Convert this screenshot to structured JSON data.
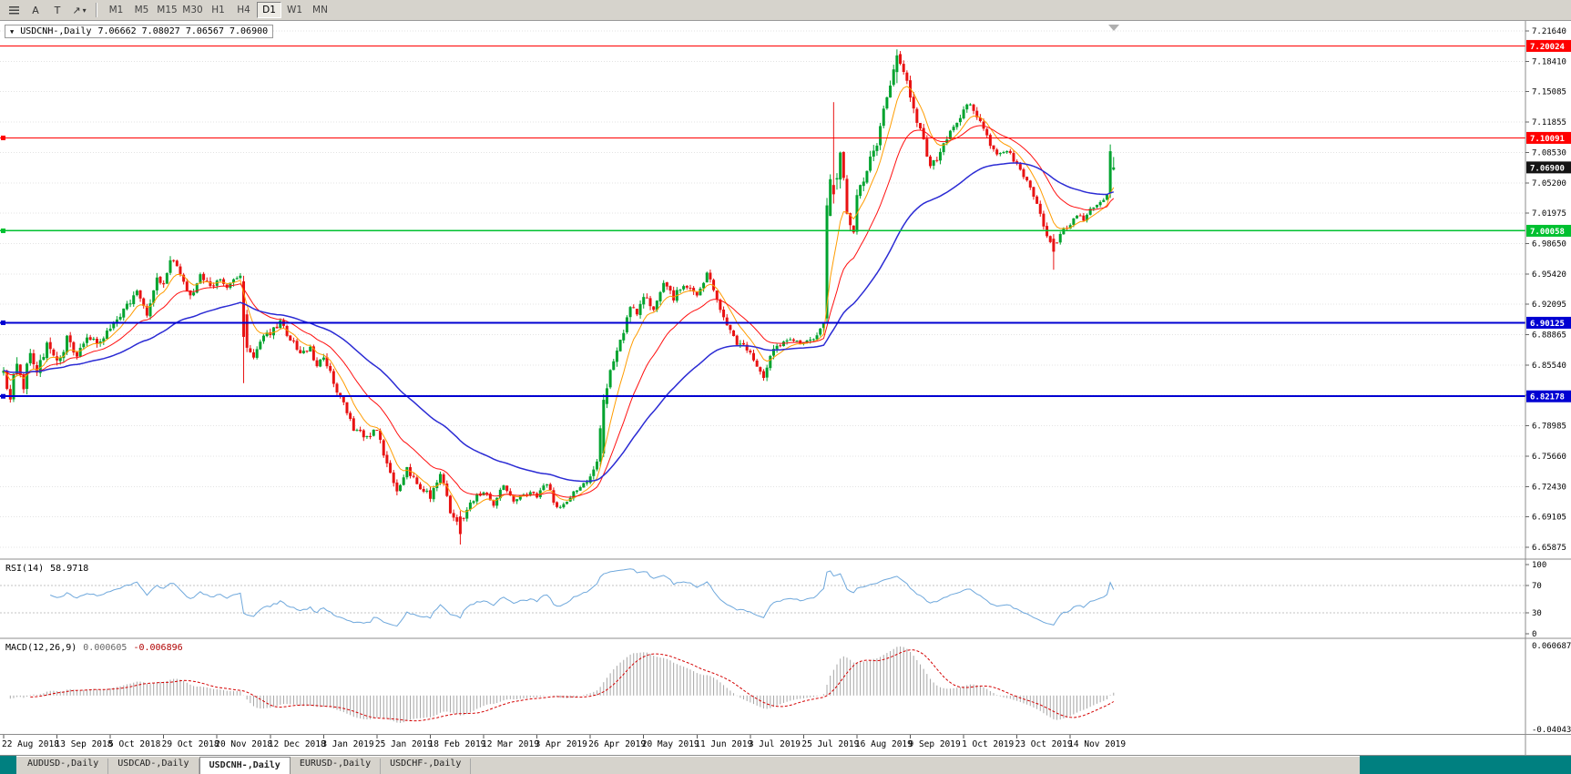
{
  "toolbar": {
    "icons": [
      {
        "name": "scroll-menu-icon",
        "glyph": "lines",
        "caret": false
      },
      {
        "name": "cursor-mode-icon",
        "glyph": "A",
        "caret": false
      },
      {
        "name": "text-tool-icon",
        "glyph": "T",
        "caret": false
      },
      {
        "name": "line-studies-icon",
        "glyph": "↗",
        "caret": true
      }
    ],
    "timeframes": [
      "M1",
      "M5",
      "M15",
      "M30",
      "H1",
      "H4",
      "D1",
      "W1",
      "MN"
    ],
    "active_timeframe": "D1"
  },
  "chart": {
    "title": "USDCNH-,Daily",
    "ohlc": "7.06662 7.08027 7.06567 7.06900",
    "price_axis_labels": [
      "7.21640",
      "7.18410",
      "7.15085",
      "7.11855",
      "7.08530",
      "7.05200",
      "7.01975",
      "6.98650",
      "6.95420",
      "6.92095",
      "6.88865",
      "6.85540",
      "6.82210",
      "6.78985",
      "6.75660",
      "6.72430",
      "6.69105",
      "6.65875"
    ],
    "axis_top_value": 7.2164,
    "axis_bottom_value": 6.65875,
    "up_color": "#00A32E",
    "down_color": "#E81212",
    "grid_color": "#E3E3E3",
    "hlines": [
      {
        "price": 7.20024,
        "label": "7.20024",
        "color": "#FF0000",
        "width": 1,
        "anchor": false
      },
      {
        "price": 7.10091,
        "label": "7.10091",
        "color": "#FF0000",
        "width": 1.3,
        "anchor": true
      },
      {
        "price": 7.00058,
        "label": "7.00058",
        "color": "#00C030",
        "width": 1.6,
        "anchor": true
      },
      {
        "price": 6.90125,
        "label": "6.90125",
        "color": "#0000D2",
        "width": 2,
        "anchor": true
      },
      {
        "price": 6.82178,
        "label": "6.82178",
        "color": "#0000D2",
        "width": 2,
        "anchor": true
      }
    ],
    "current_price": {
      "value": 7.069,
      "label": "7.06900",
      "bg": "#141414"
    }
  },
  "chart_data": {
    "type": "candlestick",
    "symbol": "USDCNH",
    "timeframe": "Daily",
    "bars": 334,
    "bars_per_label": 16,
    "x_axis_dates": [
      "22 Aug 2018",
      "13 Sep 2018",
      "5 Oct 2018",
      "29 Oct 2018",
      "20 Nov 2018",
      "12 Dec 2018",
      "3 Jan 2019",
      "25 Jan 2019",
      "18 Feb 2019",
      "12 Mar 2019",
      "3 Apr 2019",
      "26 Apr 2019",
      "20 May 2019",
      "11 Jun 2019",
      "3 Jul 2019",
      "25 Jul 2019",
      "16 Aug 2019",
      "9 Sep 2019",
      "1 Oct 2019",
      "23 Oct 2019",
      "14 Nov 2019"
    ],
    "close_waypoints": [
      [
        0,
        6.848,
        0.016
      ],
      [
        2,
        6.822,
        0.015
      ],
      [
        4,
        6.858,
        0.014
      ],
      [
        6,
        6.832,
        0.014
      ],
      [
        8,
        6.872,
        0.013
      ],
      [
        10,
        6.845,
        0.012
      ],
      [
        13,
        6.878,
        0.012
      ],
      [
        16,
        6.856,
        0.011
      ],
      [
        19,
        6.884,
        0.011
      ],
      [
        22,
        6.862,
        0.01
      ],
      [
        25,
        6.888,
        0.01
      ],
      [
        28,
        6.876,
        0.009
      ],
      [
        32,
        6.894,
        0.009
      ],
      [
        36,
        6.916,
        0.009
      ],
      [
        40,
        6.932,
        0.009
      ],
      [
        43,
        6.908,
        0.009
      ],
      [
        46,
        6.952,
        0.009
      ],
      [
        48,
        6.942,
        0.008
      ],
      [
        50,
        6.972,
        0.009
      ],
      [
        53,
        6.954,
        0.008
      ],
      [
        56,
        6.93,
        0.008
      ],
      [
        59,
        6.952,
        0.008
      ],
      [
        62,
        6.938,
        0.008
      ],
      [
        64,
        6.948,
        0.008
      ],
      [
        67,
        6.942,
        0.008
      ],
      [
        71,
        6.95,
        0.008
      ],
      [
        73,
        6.876,
        0.009
      ],
      [
        75,
        6.862,
        0.009
      ],
      [
        77,
        6.882,
        0.008
      ],
      [
        80,
        6.89,
        0.008
      ],
      [
        83,
        6.902,
        0.008
      ],
      [
        86,
        6.884,
        0.008
      ],
      [
        89,
        6.868,
        0.008
      ],
      [
        92,
        6.874,
        0.007
      ],
      [
        94,
        6.852,
        0.008
      ],
      [
        96,
        6.864,
        0.008
      ],
      [
        99,
        6.838,
        0.008
      ],
      [
        102,
        6.812,
        0.008
      ],
      [
        105,
        6.788,
        0.008
      ],
      [
        108,
        6.778,
        0.008
      ],
      [
        112,
        6.786,
        0.007
      ],
      [
        114,
        6.758,
        0.008
      ],
      [
        116,
        6.736,
        0.008
      ],
      [
        118,
        6.72,
        0.008
      ],
      [
        121,
        6.744,
        0.007
      ],
      [
        124,
        6.728,
        0.007
      ],
      [
        128,
        6.714,
        0.007
      ],
      [
        131,
        6.738,
        0.007
      ],
      [
        134,
        6.698,
        0.007
      ],
      [
        136,
        6.684,
        0.007
      ],
      [
        138,
        6.692,
        0.007
      ],
      [
        140,
        6.708,
        0.006
      ],
      [
        144,
        6.72,
        0.006
      ],
      [
        147,
        6.704,
        0.006
      ],
      [
        150,
        6.728,
        0.006
      ],
      [
        153,
        6.708,
        0.006
      ],
      [
        156,
        6.718,
        0.006
      ],
      [
        160,
        6.714,
        0.005
      ],
      [
        163,
        6.728,
        0.005
      ],
      [
        166,
        6.7,
        0.006
      ],
      [
        169,
        6.71,
        0.005
      ],
      [
        172,
        6.722,
        0.005
      ],
      [
        176,
        6.734,
        0.006
      ],
      [
        178,
        6.748,
        0.01
      ],
      [
        180,
        6.818,
        0.013
      ],
      [
        182,
        6.848,
        0.012
      ],
      [
        184,
        6.868,
        0.011
      ],
      [
        186,
        6.888,
        0.011
      ],
      [
        188,
        6.918,
        0.01
      ],
      [
        190,
        6.908,
        0.009
      ],
      [
        192,
        6.932,
        0.009
      ],
      [
        195,
        6.918,
        0.008
      ],
      [
        198,
        6.942,
        0.008
      ],
      [
        201,
        6.928,
        0.008
      ],
      [
        204,
        6.944,
        0.008
      ],
      [
        208,
        6.93,
        0.008
      ],
      [
        211,
        6.954,
        0.008
      ],
      [
        214,
        6.928,
        0.008
      ],
      [
        217,
        6.898,
        0.008
      ],
      [
        220,
        6.878,
        0.008
      ],
      [
        224,
        6.872,
        0.007
      ],
      [
        226,
        6.854,
        0.008
      ],
      [
        228,
        6.838,
        0.009
      ],
      [
        230,
        6.868,
        0.008
      ],
      [
        233,
        6.878,
        0.007
      ],
      [
        236,
        6.884,
        0.006
      ],
      [
        240,
        6.879,
        0.006
      ],
      [
        243,
        6.884,
        0.006
      ],
      [
        246,
        6.899,
        0.008
      ],
      [
        247,
        7.022,
        0.022
      ],
      [
        248,
        7.048,
        0.022
      ],
      [
        250,
        7.058,
        0.02
      ],
      [
        251,
        7.082,
        0.018
      ],
      [
        253,
        7.02,
        0.016
      ],
      [
        255,
        6.998,
        0.015
      ],
      [
        256,
        7.042,
        0.013
      ],
      [
        258,
        7.056,
        0.012
      ],
      [
        260,
        7.078,
        0.012
      ],
      [
        262,
        7.092,
        0.012
      ],
      [
        264,
        7.128,
        0.011
      ],
      [
        266,
        7.162,
        0.011
      ],
      [
        268,
        7.188,
        0.01
      ],
      [
        270,
        7.176,
        0.01
      ],
      [
        272,
        7.148,
        0.01
      ],
      [
        274,
        7.118,
        0.01
      ],
      [
        276,
        7.098,
        0.009
      ],
      [
        278,
        7.068,
        0.009
      ],
      [
        280,
        7.078,
        0.008
      ],
      [
        282,
        7.092,
        0.008
      ],
      [
        284,
        7.106,
        0.008
      ],
      [
        286,
        7.119,
        0.008
      ],
      [
        288,
        7.128,
        0.008
      ],
      [
        290,
        7.14,
        0.008
      ],
      [
        292,
        7.124,
        0.008
      ],
      [
        294,
        7.108,
        0.007
      ],
      [
        296,
        7.094,
        0.007
      ],
      [
        298,
        7.082,
        0.007
      ],
      [
        301,
        7.089,
        0.006
      ],
      [
        304,
        7.071,
        0.006
      ],
      [
        307,
        7.054,
        0.006
      ],
      [
        310,
        7.028,
        0.006
      ],
      [
        312,
        7.008,
        0.007
      ],
      [
        314,
        6.986,
        0.007
      ],
      [
        316,
        6.988,
        0.006
      ],
      [
        318,
        7.002,
        0.006
      ],
      [
        320,
        7.007,
        0.005
      ],
      [
        322,
        7.018,
        0.005
      ],
      [
        324,
        7.013,
        0.005
      ],
      [
        326,
        7.024,
        0.005
      ],
      [
        328,
        7.029,
        0.005
      ],
      [
        330,
        7.034,
        0.005
      ],
      [
        331,
        7.038,
        0.005
      ],
      [
        332,
        7.086,
        0.006
      ],
      [
        333,
        7.069,
        0.005
      ]
    ],
    "overrides": [
      {
        "i": 72,
        "o": 6.946,
        "h": 6.952,
        "l": 6.836,
        "c": 6.886
      },
      {
        "i": 137,
        "o": 6.692,
        "h": 6.698,
        "l": 6.6617,
        "c": 6.673
      },
      {
        "i": 180,
        "o": 6.76,
        "h": 6.824,
        "l": 6.756,
        "c": 6.818
      },
      {
        "i": 247,
        "o": 6.906,
        "h": 7.036,
        "l": 6.901,
        "c": 7.028
      },
      {
        "i": 249,
        "o": 7.05,
        "h": 7.1395,
        "l": 7.03,
        "c": 7.04
      },
      {
        "i": 268,
        "o": 7.172,
        "h": 7.1965,
        "l": 7.16,
        "c": 7.19
      },
      {
        "i": 315,
        "o": 6.992,
        "h": 6.997,
        "l": 6.9585,
        "c": 6.978
      },
      {
        "i": 332,
        "o": 7.041,
        "h": 7.0938,
        "l": 7.036,
        "c": 7.0865
      },
      {
        "i": 333,
        "o": 7.06662,
        "h": 7.08027,
        "l": 7.06567,
        "c": 7.069
      }
    ],
    "ma": [
      {
        "name": "ma-fast",
        "period": 8,
        "color": "#FF9C00",
        "width": 1
      },
      {
        "name": "ma-mid",
        "period": 21,
        "color": "#FF1010",
        "width": 1
      },
      {
        "name": "ma-slow",
        "period": 55,
        "color": "#2B2BD4",
        "width": 1.5
      }
    ]
  },
  "rsi": {
    "label": "RSI(14)",
    "value": "58.9718",
    "period": 14,
    "color": "#6FA8DC",
    "levels": [
      {
        "v": 100,
        "label": "100",
        "dashed": false
      },
      {
        "v": 70,
        "label": "70",
        "dashed": true
      },
      {
        "v": 30,
        "label": "30",
        "dashed": true
      },
      {
        "v": 0,
        "label": "0",
        "dashed": false
      }
    ]
  },
  "macd": {
    "label": "MACD(12,26,9)",
    "value_main": "0.000605",
    "value_signal": "-0.006896",
    "axis_max": 0.060687,
    "axis_min": -0.040432,
    "axis_max_label": "0.060687",
    "axis_min_label": "-0.040432",
    "hist_color": "#A6A6A6",
    "signal_color": "#D40000"
  },
  "tabs": [
    {
      "label": "AUDUSD-,Daily",
      "active": false
    },
    {
      "label": "USDCAD-,Daily",
      "active": false
    },
    {
      "label": "USDCNH-,Daily",
      "active": true
    },
    {
      "label": "EURUSD-,Daily",
      "active": false
    },
    {
      "label": "USDCHF-,Daily",
      "active": false
    }
  ]
}
